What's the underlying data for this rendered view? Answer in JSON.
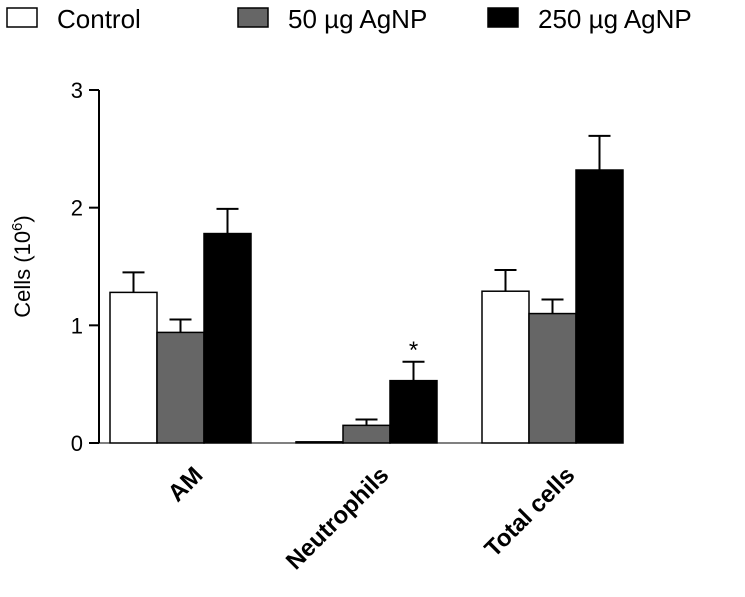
{
  "chart_data": {
    "type": "bar",
    "title": "",
    "xlabel": "",
    "ylabel": "Cells (10",
    "ylabel_sup": "6",
    "ylabel_close": ")",
    "ylim": [
      0,
      3
    ],
    "yticks": [
      "0",
      "1",
      "2",
      "3"
    ],
    "categories": [
      "AM",
      "Neutrophils",
      "Total cells"
    ],
    "legend_position": "top",
    "series": [
      {
        "name": "Control",
        "color": "#ffffff",
        "values": [
          1.28,
          0.01,
          1.29
        ],
        "errors": [
          0.17,
          0.0,
          0.18
        ]
      },
      {
        "name": "50 µg AgNP",
        "color": "#666666",
        "values": [
          0.94,
          0.15,
          1.1
        ],
        "errors": [
          0.11,
          0.05,
          0.12
        ]
      },
      {
        "name": "250 µg AgNP",
        "color": "#000000",
        "values": [
          1.78,
          0.53,
          2.32
        ],
        "errors": [
          0.21,
          0.16,
          0.29
        ]
      }
    ],
    "annotations": [
      {
        "category": "Neutrophils",
        "series": "250 µg AgNP",
        "text": "*"
      }
    ]
  }
}
